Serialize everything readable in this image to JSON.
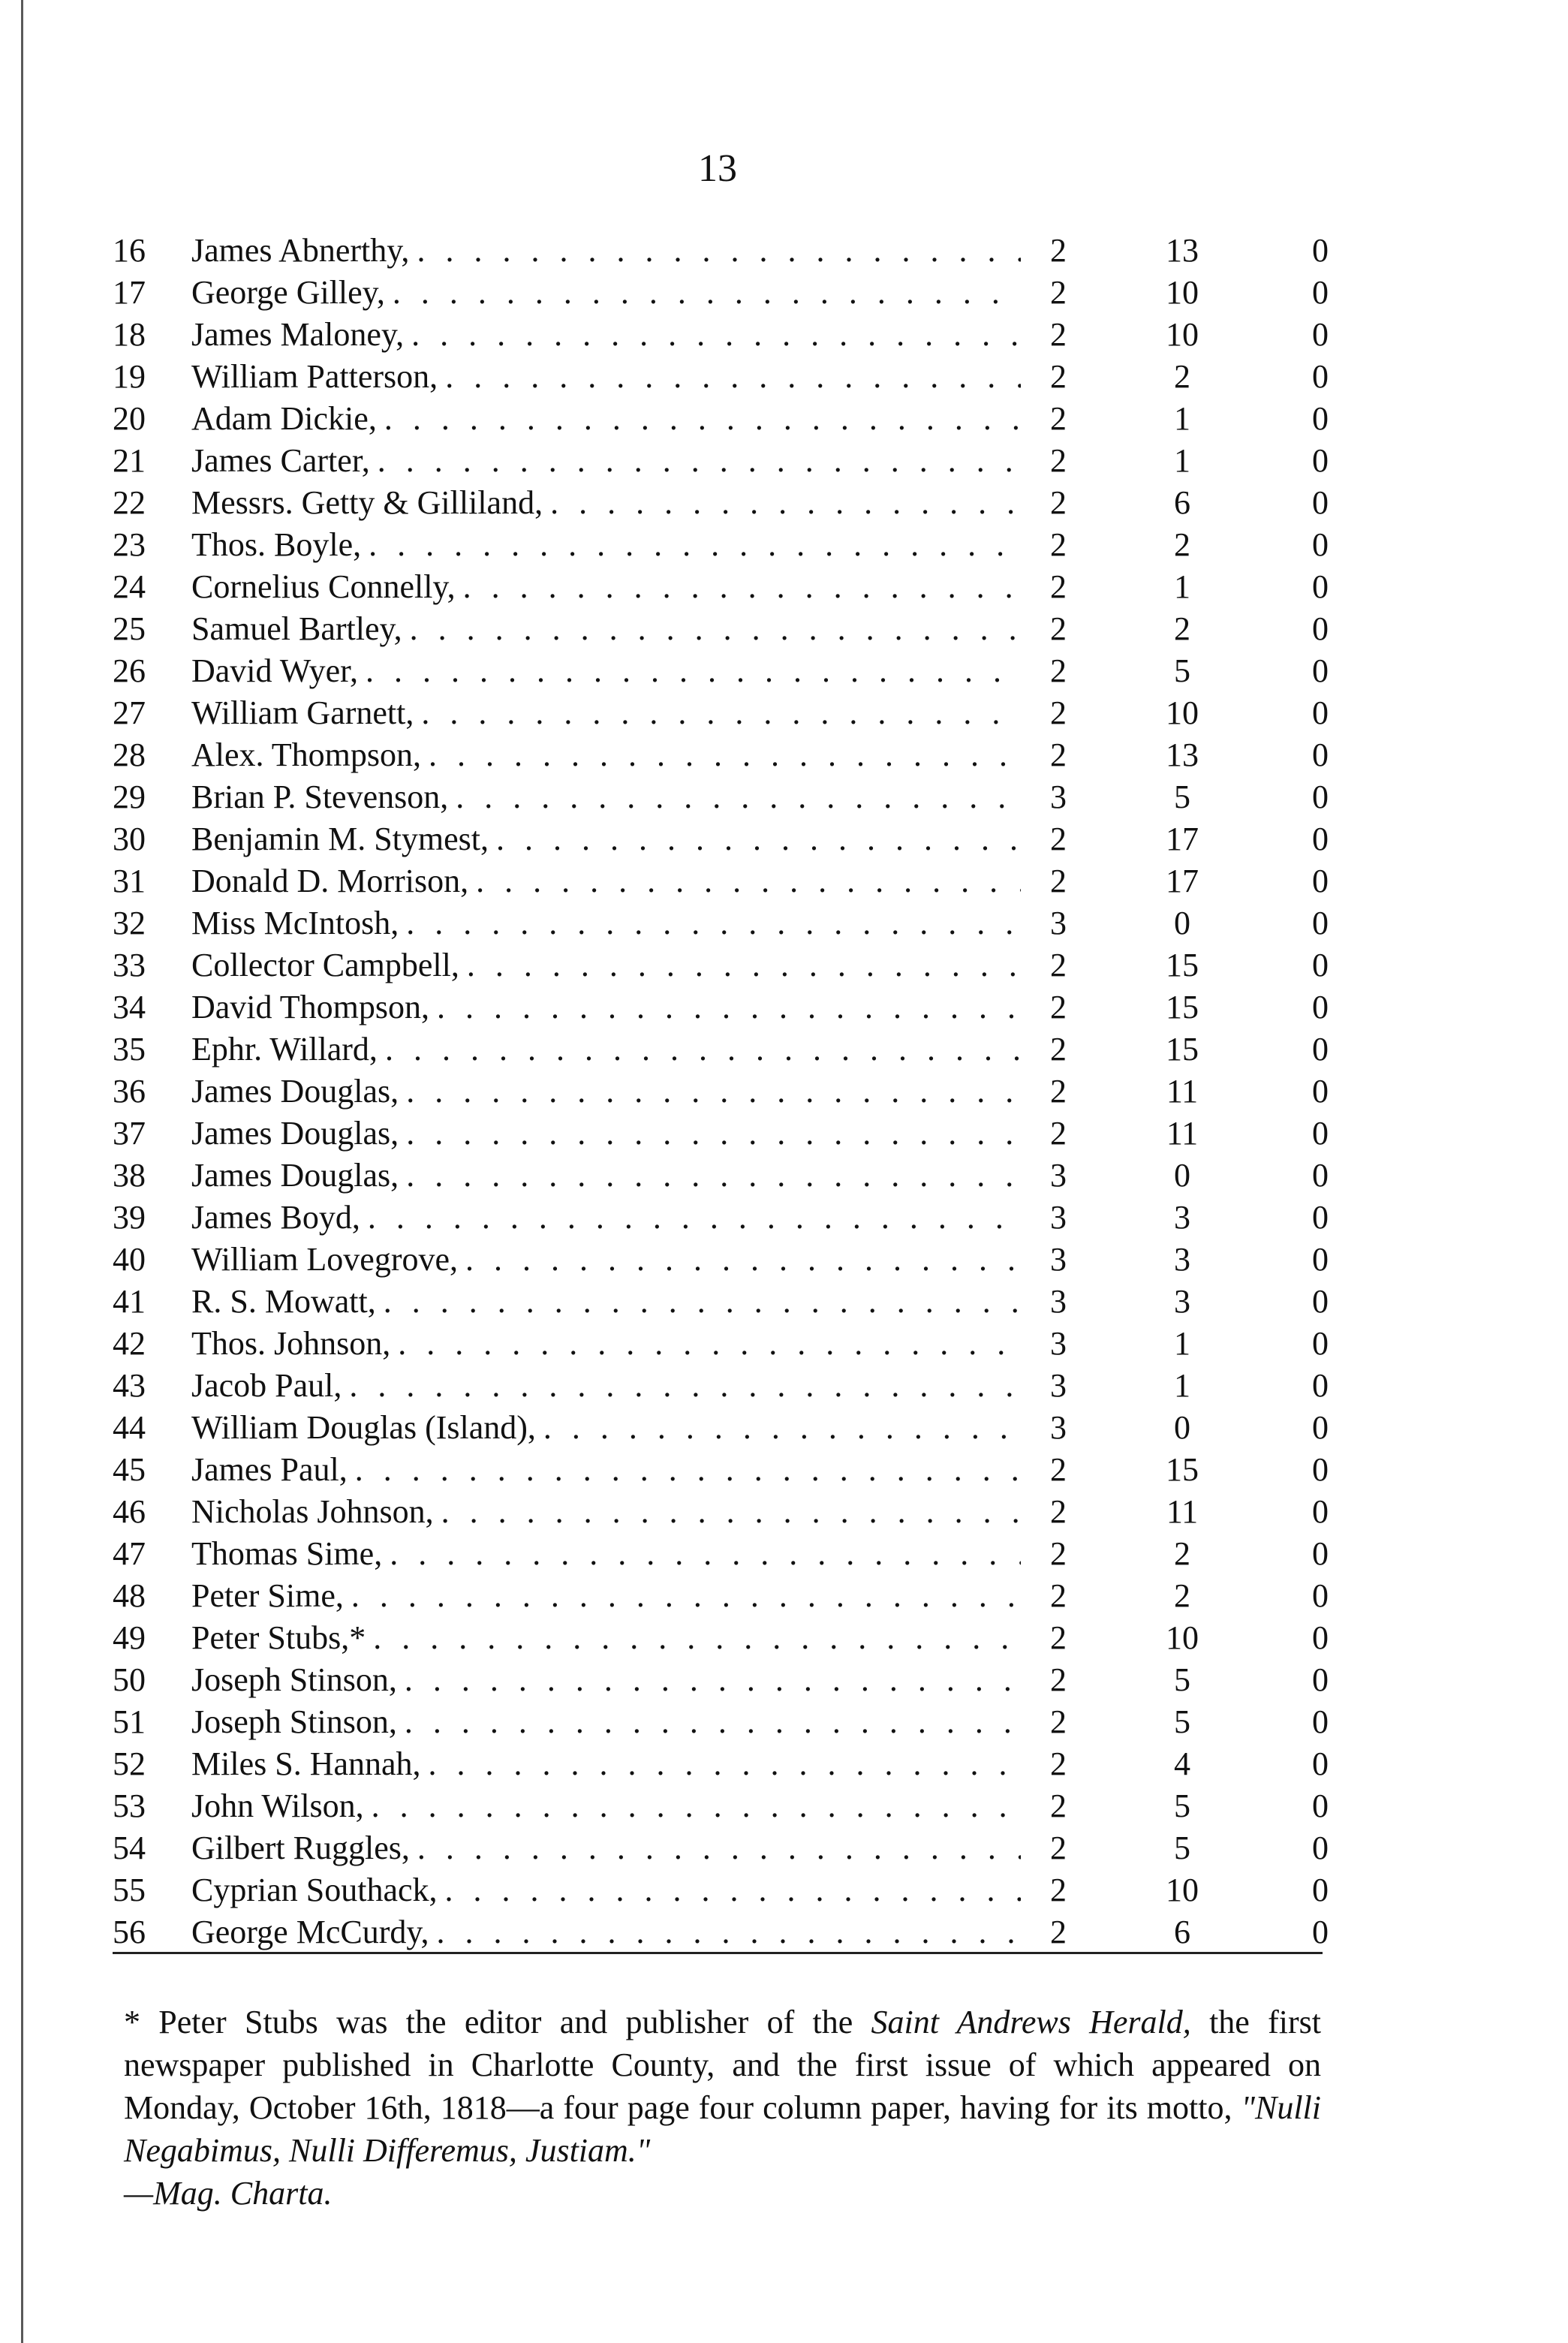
{
  "page_number": "13",
  "rows": [
    {
      "no": "16",
      "name": "James Abnerthy,",
      "pounds": "2",
      "shillings": "13",
      "pence": "0"
    },
    {
      "no": "17",
      "name": "George Gilley,",
      "pounds": "2",
      "shillings": "10",
      "pence": "0"
    },
    {
      "no": "18",
      "name": "James Maloney,",
      "pounds": "2",
      "shillings": "10",
      "pence": "0"
    },
    {
      "no": "19",
      "name": "William Patterson,",
      "pounds": "2",
      "shillings": "2",
      "pence": "0"
    },
    {
      "no": "20",
      "name": "Adam Dickie,",
      "pounds": "2",
      "shillings": "1",
      "pence": "0"
    },
    {
      "no": "21",
      "name": "James Carter,",
      "pounds": "2",
      "shillings": "1",
      "pence": "0"
    },
    {
      "no": "22",
      "name": "Messrs. Getty & Gilliland,",
      "pounds": "2",
      "shillings": "6",
      "pence": "0"
    },
    {
      "no": "23",
      "name": "Thos. Boyle,",
      "pounds": "2",
      "shillings": "2",
      "pence": "0"
    },
    {
      "no": "24",
      "name": "Cornelius Connelly,",
      "pounds": "2",
      "shillings": "1",
      "pence": "0"
    },
    {
      "no": "25",
      "name": "Samuel Bartley,",
      "pounds": "2",
      "shillings": "2",
      "pence": "0"
    },
    {
      "no": "26",
      "name": "David Wyer,",
      "pounds": "2",
      "shillings": "5",
      "pence": "0"
    },
    {
      "no": "27",
      "name": "William Garnett,",
      "pounds": "2",
      "shillings": "10",
      "pence": "0"
    },
    {
      "no": "28",
      "name": "Alex. Thompson,",
      "pounds": "2",
      "shillings": "13",
      "pence": "0"
    },
    {
      "no": "29",
      "name": "Brian P. Stevenson,",
      "pounds": "3",
      "shillings": "5",
      "pence": "0"
    },
    {
      "no": "30",
      "name": "Benjamin M. Stymest,",
      "pounds": "2",
      "shillings": "17",
      "pence": "0"
    },
    {
      "no": "31",
      "name": "Donald D. Morrison,",
      "pounds": "2",
      "shillings": "17",
      "pence": "0"
    },
    {
      "no": "32",
      "name": "Miss McIntosh,",
      "pounds": "3",
      "shillings": "0",
      "pence": "0"
    },
    {
      "no": "33",
      "name": "Collector Campbell,",
      "pounds": "2",
      "shillings": "15",
      "pence": "0"
    },
    {
      "no": "34",
      "name": "David Thompson,",
      "pounds": "2",
      "shillings": "15",
      "pence": "0"
    },
    {
      "no": "35",
      "name": "Ephr. Willard,",
      "pounds": "2",
      "shillings": "15",
      "pence": "0"
    },
    {
      "no": "36",
      "name": "James Douglas,",
      "pounds": "2",
      "shillings": "11",
      "pence": "0"
    },
    {
      "no": "37",
      "name": "James Douglas,",
      "pounds": "2",
      "shillings": "11",
      "pence": "0"
    },
    {
      "no": "38",
      "name": "James Douglas,",
      "pounds": "3",
      "shillings": "0",
      "pence": "0"
    },
    {
      "no": "39",
      "name": "James Boyd,",
      "pounds": "3",
      "shillings": "3",
      "pence": "0"
    },
    {
      "no": "40",
      "name": "William Lovegrove,",
      "pounds": "3",
      "shillings": "3",
      "pence": "0"
    },
    {
      "no": "41",
      "name": "R. S. Mowatt,",
      "pounds": "3",
      "shillings": "3",
      "pence": "0"
    },
    {
      "no": "42",
      "name": "Thos. Johnson,",
      "pounds": "3",
      "shillings": "1",
      "pence": "0"
    },
    {
      "no": "43",
      "name": "Jacob Paul,",
      "pounds": "3",
      "shillings": "1",
      "pence": "0"
    },
    {
      "no": "44",
      "name": "William Douglas (Island),",
      "pounds": "3",
      "shillings": "0",
      "pence": "0"
    },
    {
      "no": "45",
      "name": "James Paul,",
      "pounds": "2",
      "shillings": "15",
      "pence": "0"
    },
    {
      "no": "46",
      "name": "Nicholas Johnson,",
      "pounds": "2",
      "shillings": "11",
      "pence": "0"
    },
    {
      "no": "47",
      "name": "Thomas Sime,",
      "pounds": "2",
      "shillings": "2",
      "pence": "0"
    },
    {
      "no": "48",
      "name": "Peter Sime,",
      "pounds": "2",
      "shillings": "2",
      "pence": "0"
    },
    {
      "no": "49",
      "name": "Peter Stubs,*",
      "pounds": "2",
      "shillings": "10",
      "pence": "0"
    },
    {
      "no": "50",
      "name": "Joseph Stinson,",
      "pounds": "2",
      "shillings": "5",
      "pence": "0"
    },
    {
      "no": "51",
      "name": "Joseph Stinson,",
      "pounds": "2",
      "shillings": "5",
      "pence": "0"
    },
    {
      "no": "52",
      "name": "Miles S. Hannah,",
      "pounds": "2",
      "shillings": "4",
      "pence": "0"
    },
    {
      "no": "53",
      "name": "John Wilson,",
      "pounds": "2",
      "shillings": "5",
      "pence": "0"
    },
    {
      "no": "54",
      "name": "Gilbert Ruggles,",
      "pounds": "2",
      "shillings": "5",
      "pence": "0"
    },
    {
      "no": "55",
      "name": "Cyprian Southack,",
      "pounds": "2",
      "shillings": "10",
      "pence": "0"
    },
    {
      "no": "56",
      "name": "George McCurdy,",
      "pounds": "2",
      "shillings": "6",
      "pence": "0"
    }
  ],
  "footnote": {
    "part1": "* Peter Stubs was the editor and publisher of the ",
    "paper_name": "Saint Andrews Herald,",
    "part2": " the first newspaper published in Charlotte County, and the first issue of which appeared on Monday, October 16th, 1818—a four page four column paper, having for its motto, ",
    "motto": "\"Nulli Negabimus, Nulli Differemus, Justiam.\"",
    "source": "—Mag. Charta."
  }
}
